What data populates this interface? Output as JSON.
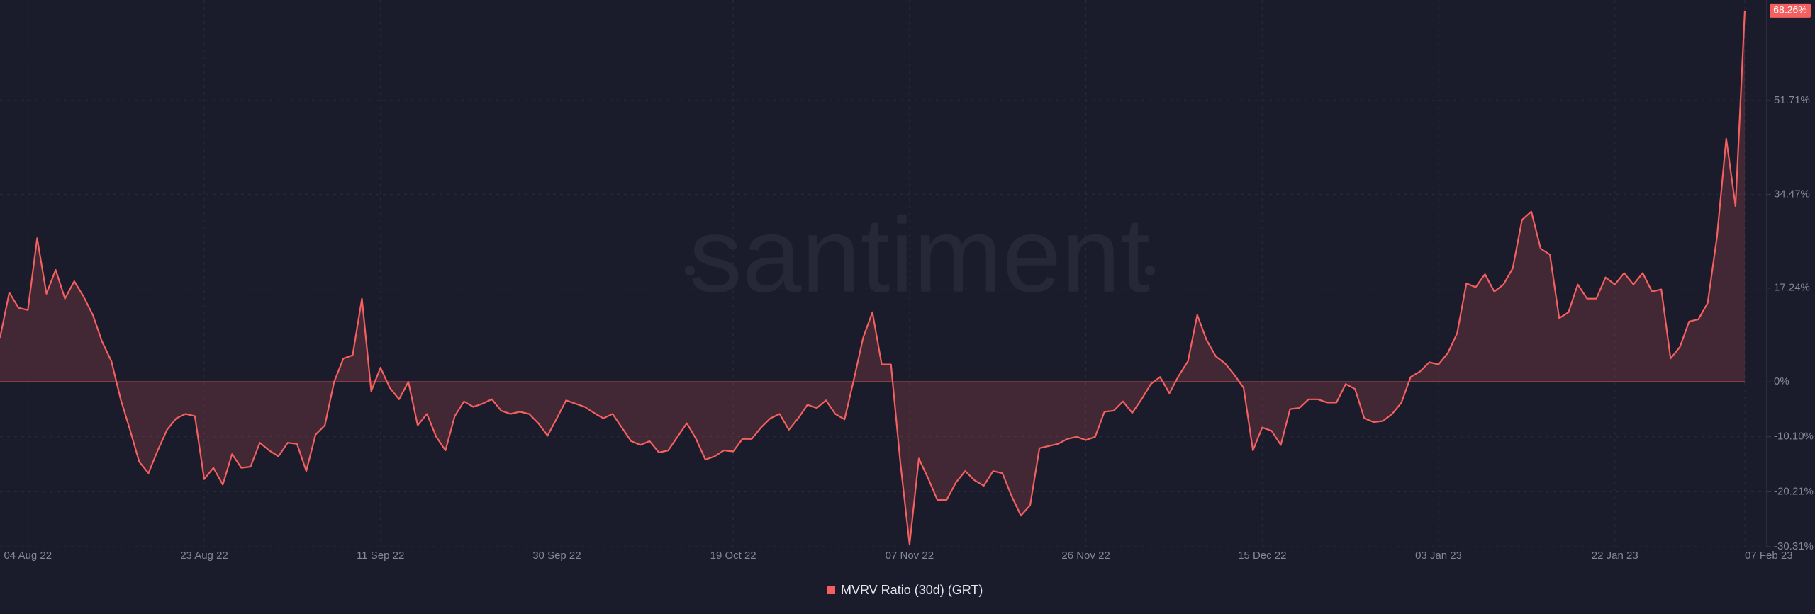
{
  "chart_data": {
    "type": "line",
    "watermark": "santiment",
    "categories": [
      null,
      null,
      null,
      "04 Aug 22",
      null,
      null,
      null,
      null,
      null,
      null,
      null,
      null,
      null,
      null,
      null,
      null,
      null,
      null,
      null,
      null,
      null,
      null,
      "23 Aug 22",
      null,
      null,
      null,
      null,
      null,
      null,
      null,
      null,
      null,
      null,
      null,
      null,
      null,
      null,
      null,
      null,
      null,
      null,
      "11 Sep 22",
      null,
      null,
      null,
      null,
      null,
      null,
      null,
      null,
      null,
      null,
      null,
      null,
      null,
      null,
      null,
      null,
      null,
      null,
      "30 Sep 22",
      null,
      null,
      null,
      null,
      null,
      null,
      null,
      null,
      null,
      null,
      null,
      null,
      null,
      null,
      null,
      null,
      null,
      null,
      "19 Oct 22",
      null,
      null,
      null,
      null,
      null,
      null,
      null,
      null,
      null,
      null,
      null,
      null,
      null,
      null,
      null,
      null,
      null,
      null,
      "07 Nov 22",
      null,
      null,
      null,
      null,
      null,
      null,
      null,
      null,
      null,
      null,
      null,
      null,
      null,
      null,
      null,
      null,
      null,
      null,
      "26 Nov 22",
      null,
      null,
      null,
      null,
      null,
      null,
      null,
      null,
      null,
      null,
      null,
      null,
      null,
      null,
      null,
      null,
      null,
      null,
      "15 Dec 22",
      null,
      null,
      null,
      null,
      null,
      null,
      null,
      null,
      null,
      null,
      null,
      null,
      null,
      null,
      null,
      null,
      null,
      null,
      "03 Jan 23",
      null,
      null,
      null,
      null,
      null,
      null,
      null,
      null,
      null,
      null,
      null,
      null,
      null,
      null,
      null,
      null,
      null,
      null,
      "22 Jan 23",
      null,
      null,
      null,
      null,
      null,
      null,
      null,
      null,
      null,
      null,
      null,
      null,
      null,
      "07 Feb 23"
    ],
    "series": [
      {
        "name": "MVRV Ratio (30d) (GRT)",
        "color": "#f4605f",
        "values": [
          8.1,
          16.4,
          13.6,
          13.2,
          26.4,
          16.2,
          20.6,
          15.3,
          18.5,
          15.7,
          12.3,
          7.4,
          3.8,
          -3.2,
          -8.8,
          -14.7,
          -16.8,
          -12.6,
          -8.8,
          -6.7,
          -5.9,
          -6.3,
          -17.9,
          -15.8,
          -18.9,
          -13.3,
          -15.8,
          -15.6,
          -11.2,
          -12.6,
          -13.7,
          -11.2,
          -11.4,
          -16.4,
          -9.7,
          -8.0,
          0,
          4.3,
          4.9,
          15.3,
          -1.7,
          2.6,
          -1.1,
          -3.2,
          0,
          -8.0,
          -5.9,
          -10.1,
          -12.6,
          -6.3,
          -3.6,
          -4.6,
          -4.0,
          -3.2,
          -5.3,
          -5.9,
          -5.5,
          -5.9,
          -7.6,
          -9.9,
          -6.7,
          -3.4,
          -4.0,
          -4.6,
          -5.7,
          -6.7,
          -5.9,
          -8.4,
          -10.9,
          -11.6,
          -10.9,
          -13.0,
          -12.6,
          -10.1,
          -7.6,
          -10.5,
          -14.3,
          -13.7,
          -12.6,
          -12.8,
          -10.5,
          -10.5,
          -8.4,
          -6.7,
          -5.9,
          -8.8,
          -6.7,
          -4.2,
          -4.8,
          -3.4,
          -5.9,
          -6.9,
          0.4,
          8.1,
          12.8,
          3.2,
          3.2,
          -14.7,
          -29.9,
          -14.1,
          -17.7,
          -21.7,
          -21.7,
          -18.5,
          -16.4,
          -18.1,
          -19.1,
          -16.4,
          -16.8,
          -21.0,
          -24.6,
          -22.7,
          -12.2,
          -11.8,
          -11.4,
          -10.5,
          -10.1,
          -10.7,
          -10.1,
          -5.5,
          -5.3,
          -3.6,
          -5.7,
          -3.2,
          -0.4,
          0.9,
          -2.1,
          1.1,
          3.8,
          12.3,
          7.7,
          4.7,
          3.4,
          1.3,
          -1.1,
          -12.6,
          -8.4,
          -9.0,
          -11.6,
          -5.0,
          -4.8,
          -3.2,
          -3.2,
          -3.8,
          -3.8,
          -0.4,
          -1.3,
          -6.7,
          -7.4,
          -7.2,
          -5.9,
          -3.8,
          0.9,
          1.9,
          3.6,
          3.2,
          5.3,
          8.9,
          18.1,
          17.4,
          19.8,
          16.6,
          17.9,
          20.9,
          29.8,
          31.3,
          24.5,
          23.4,
          11.7,
          12.8,
          17.9,
          15.3,
          15.3,
          19.2,
          17.9,
          20.0,
          17.9,
          20.0,
          16.6,
          17.0,
          4.3,
          6.4,
          11.1,
          11.5,
          14.5,
          26.6,
          44.7,
          32.3,
          68.26
        ]
      }
    ],
    "last_value_label": "68.26%",
    "ylim": [
      -30.31,
      70.2
    ],
    "yticks": [
      {
        "value": -30.31,
        "label": "-30.31%"
      },
      {
        "value": -20.21,
        "label": "-20.21%"
      },
      {
        "value": -10.1,
        "label": "-10.10%"
      },
      {
        "value": 0,
        "label": "0%"
      },
      {
        "value": 17.24,
        "label": "17.24%"
      },
      {
        "value": 34.47,
        "label": "34.47%"
      },
      {
        "value": 51.71,
        "label": "51.71%"
      }
    ],
    "grid": true
  }
}
